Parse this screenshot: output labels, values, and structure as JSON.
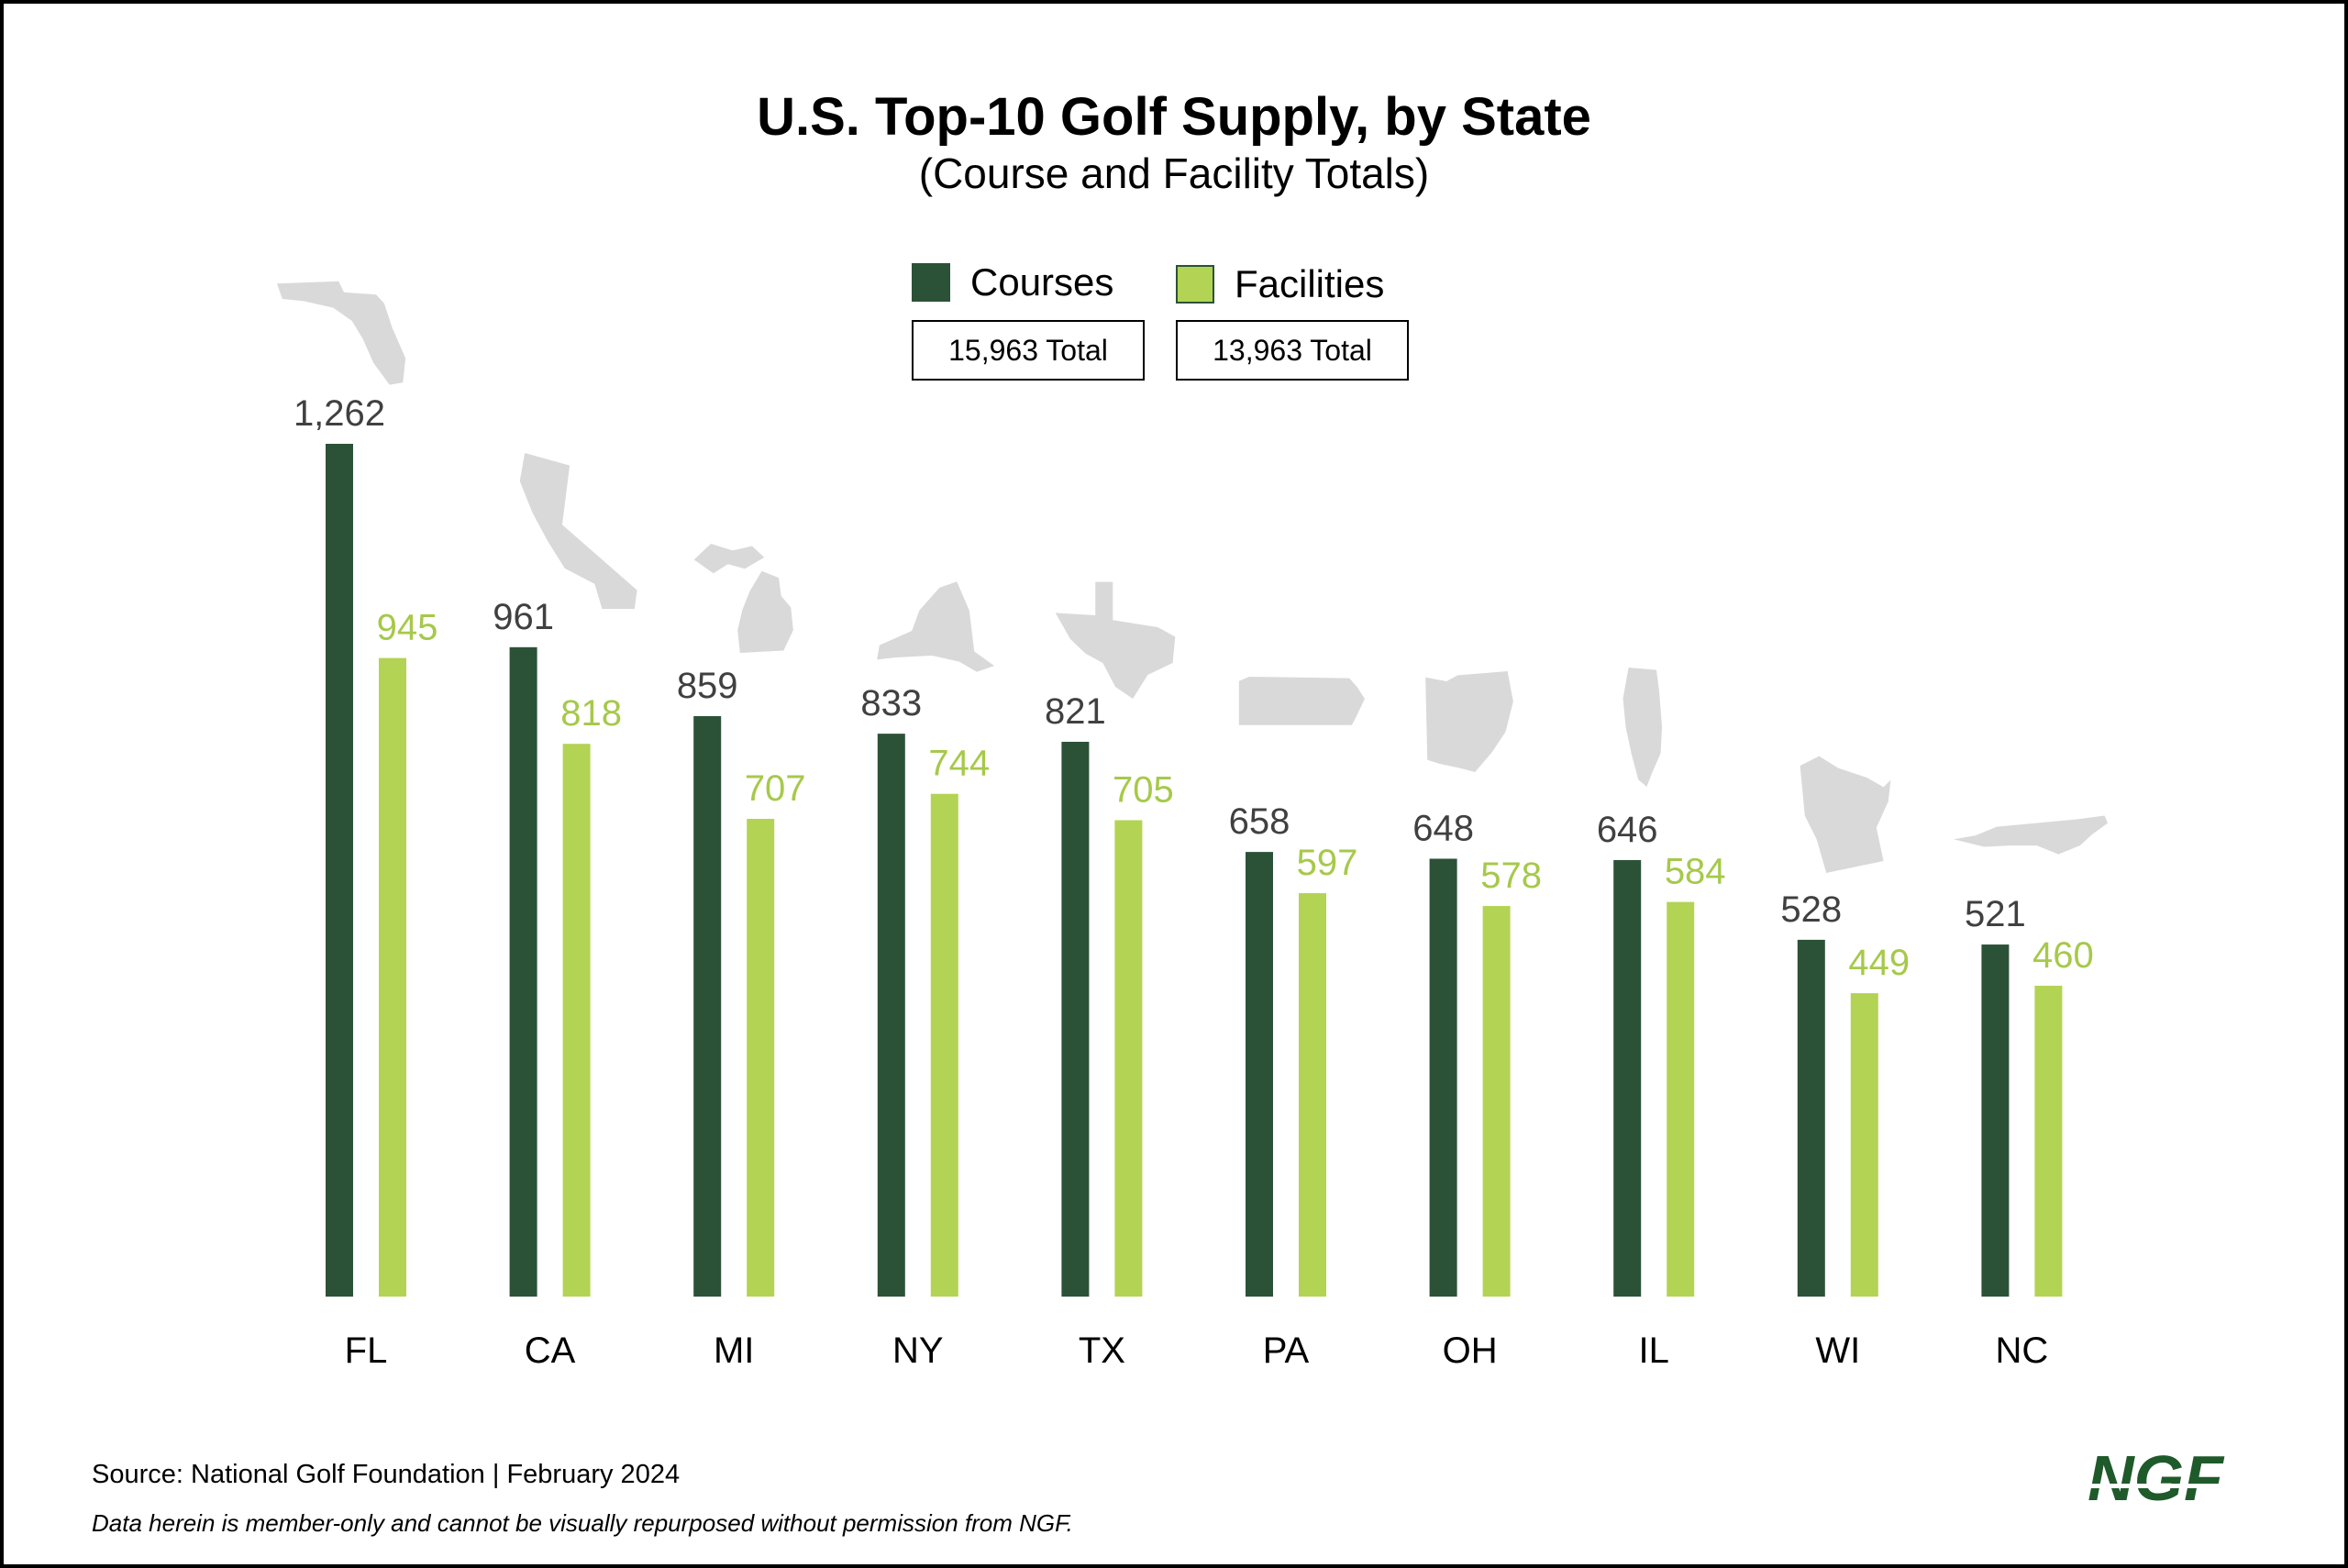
{
  "title": "U.S. Top-10 Golf Supply, by State",
  "subtitle": "(Course and Facility Totals)",
  "legend": {
    "courses_label": "Courses",
    "facilities_label": "Facilities",
    "courses_total": "15,963 Total",
    "facilities_total": "13,963 Total"
  },
  "colors": {
    "courses": "#2b5237",
    "facilities": "#b3d354",
    "value_courses": "#404040",
    "value_facilities": "#a6c94a",
    "state_shape": "#d9d9d9"
  },
  "chart_data": {
    "type": "bar",
    "categories": [
      "FL",
      "CA",
      "MI",
      "NY",
      "TX",
      "PA",
      "OH",
      "IL",
      "WI",
      "NC"
    ],
    "series": [
      {
        "name": "Courses",
        "values": [
          1262,
          961,
          859,
          833,
          821,
          658,
          648,
          646,
          528,
          521
        ]
      },
      {
        "name": "Facilities",
        "values": [
          945,
          818,
          707,
          744,
          705,
          597,
          578,
          584,
          449,
          460
        ]
      }
    ],
    "data_labels": {
      "Courses": [
        "1,262",
        "961",
        "859",
        "833",
        "821",
        "658",
        "648",
        "646",
        "528",
        "521"
      ],
      "Facilities": [
        "945",
        "818",
        "707",
        "744",
        "705",
        "597",
        "578",
        "584",
        "449",
        "460"
      ]
    },
    "ylim": [
      0,
      1262
    ],
    "grid": false,
    "legend_position": "top-center",
    "state_icons": [
      "florida-shape",
      "california-shape",
      "michigan-shape",
      "new-york-shape",
      "texas-shape",
      "pennsylvania-shape",
      "ohio-shape",
      "illinois-shape",
      "wisconsin-shape",
      "north-carolina-shape"
    ]
  },
  "footer": {
    "source": "Source: National Golf Foundation | February 2024",
    "disclaimer": "Data herein is member-only and cannot be visually repurposed without permission from NGF."
  },
  "logo": {
    "text": "NGF",
    "color": "#1f5a2a"
  }
}
